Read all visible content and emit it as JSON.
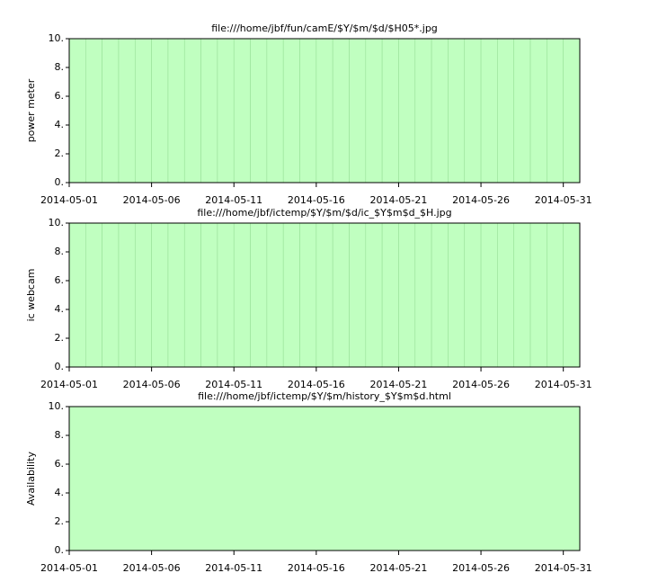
{
  "chart_data": [
    {
      "type": "bar",
      "title": "file:///home/jbf/fun/camE/$Y/$m/$d/$H05*.jpg",
      "ylabel": "power meter",
      "x": [
        "2014-05-01",
        "2014-05-02",
        "2014-05-03",
        "2014-05-04",
        "2014-05-05",
        "2014-05-06",
        "2014-05-07",
        "2014-05-08",
        "2014-05-09",
        "2014-05-10",
        "2014-05-11",
        "2014-05-12",
        "2014-05-13",
        "2014-05-14",
        "2014-05-15",
        "2014-05-16",
        "2014-05-17",
        "2014-05-18",
        "2014-05-19",
        "2014-05-20",
        "2014-05-21",
        "2014-05-22",
        "2014-05-23",
        "2014-05-24",
        "2014-05-25",
        "2014-05-26",
        "2014-05-27",
        "2014-05-28",
        "2014-05-29",
        "2014-05-30",
        "2014-05-31"
      ],
      "values": [
        10,
        10,
        10,
        10,
        10,
        10,
        10,
        10,
        10,
        10,
        10,
        10,
        10,
        10,
        10,
        10,
        10,
        10,
        10,
        10,
        10,
        10,
        10,
        10,
        10,
        10,
        10,
        10,
        10,
        10,
        10
      ],
      "color": "#c0ffc0",
      "edgecolor": "#98e098",
      "xlim": [
        "2014-05-01",
        "2014-06-01"
      ],
      "xticks": [
        "2014-05-01",
        "2014-05-06",
        "2014-05-11",
        "2014-05-16",
        "2014-05-21",
        "2014-05-26",
        "2014-05-31"
      ],
      "ylim": [
        0,
        10
      ],
      "yticks": [
        {
          "value": 0,
          "label": "0."
        },
        {
          "value": 2,
          "label": "2."
        },
        {
          "value": 4,
          "label": "4."
        },
        {
          "value": 6,
          "label": "6."
        },
        {
          "value": 8,
          "label": "8."
        },
        {
          "value": 10,
          "label": "10."
        }
      ]
    },
    {
      "type": "bar",
      "title": "file:///home/jbf/ictemp/$Y/$m/$d/ic_$Y$m$d_$H.jpg",
      "ylabel": "ic webcam",
      "x": [
        "2014-05-01",
        "2014-05-02",
        "2014-05-03",
        "2014-05-04",
        "2014-05-05",
        "2014-05-06",
        "2014-05-07",
        "2014-05-08",
        "2014-05-09",
        "2014-05-10",
        "2014-05-11",
        "2014-05-12",
        "2014-05-13",
        "2014-05-14",
        "2014-05-15",
        "2014-05-16",
        "2014-05-17",
        "2014-05-18",
        "2014-05-19",
        "2014-05-20",
        "2014-05-21",
        "2014-05-22",
        "2014-05-23",
        "2014-05-24",
        "2014-05-25",
        "2014-05-26",
        "2014-05-27",
        "2014-05-28",
        "2014-05-29",
        "2014-05-30",
        "2014-05-31"
      ],
      "values": [
        10,
        10,
        10,
        10,
        10,
        10,
        10,
        10,
        10,
        10,
        10,
        10,
        10,
        10,
        10,
        10,
        10,
        10,
        10,
        10,
        10,
        10,
        10,
        10,
        10,
        10,
        10,
        10,
        10,
        10,
        10
      ],
      "color": "#c0ffc0",
      "edgecolor": "#98e098",
      "xlim": [
        "2014-05-01",
        "2014-06-01"
      ],
      "xticks": [
        "2014-05-01",
        "2014-05-06",
        "2014-05-11",
        "2014-05-16",
        "2014-05-21",
        "2014-05-26",
        "2014-05-31"
      ],
      "ylim": [
        0,
        10
      ],
      "yticks": [
        {
          "value": 0,
          "label": "0."
        },
        {
          "value": 2,
          "label": "2."
        },
        {
          "value": 4,
          "label": "4."
        },
        {
          "value": 6,
          "label": "6."
        },
        {
          "value": 8,
          "label": "8."
        },
        {
          "value": 10,
          "label": "10."
        }
      ]
    },
    {
      "type": "bar",
      "title": "file:///home/jbf/ictemp/$Y/$m/history_$Y$m$d.html",
      "ylabel": "Availability",
      "x": [
        "2014-05-01",
        "2014-05-02",
        "2014-05-03",
        "2014-05-04",
        "2014-05-05",
        "2014-05-06",
        "2014-05-07",
        "2014-05-08",
        "2014-05-09",
        "2014-05-10",
        "2014-05-11",
        "2014-05-12",
        "2014-05-13",
        "2014-05-14",
        "2014-05-15",
        "2014-05-16",
        "2014-05-17",
        "2014-05-18",
        "2014-05-19",
        "2014-05-20",
        "2014-05-21",
        "2014-05-22",
        "2014-05-23",
        "2014-05-24",
        "2014-05-25",
        "2014-05-26",
        "2014-05-27",
        "2014-05-28",
        "2014-05-29",
        "2014-05-30",
        "2014-05-31"
      ],
      "values": [
        10,
        10,
        10,
        10,
        10,
        10,
        10,
        10,
        10,
        10,
        10,
        10,
        10,
        10,
        10,
        10,
        10,
        10,
        10,
        10,
        10,
        10,
        10,
        10,
        10,
        10,
        10,
        10,
        10,
        10,
        10
      ],
      "color": "#c0ffc0",
      "edgecolor": "#c0ffc0",
      "xlim": [
        "2014-05-01",
        "2014-06-01"
      ],
      "xticks": [
        "2014-05-01",
        "2014-05-06",
        "2014-05-11",
        "2014-05-16",
        "2014-05-21",
        "2014-05-26",
        "2014-05-31"
      ],
      "ylim": [
        0,
        10
      ],
      "yticks": [
        {
          "value": 0,
          "label": "0."
        },
        {
          "value": 2,
          "label": "2."
        },
        {
          "value": 4,
          "label": "4."
        },
        {
          "value": 6,
          "label": "6."
        },
        {
          "value": 8,
          "label": "8."
        },
        {
          "value": 10,
          "label": "10."
        }
      ]
    }
  ]
}
